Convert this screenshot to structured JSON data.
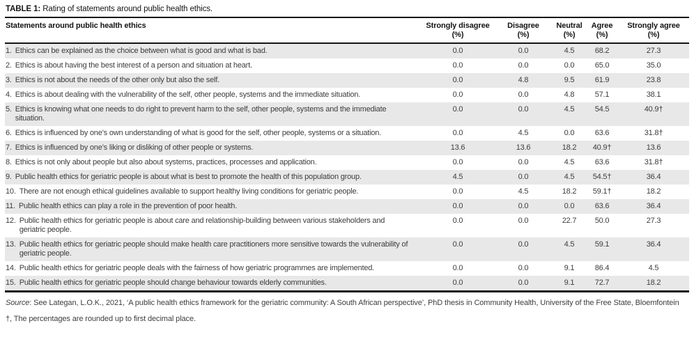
{
  "title": {
    "label": "TABLE 1:",
    "text": " Rating of statements around public health ethics."
  },
  "table": {
    "columns": [
      {
        "label": "Statements around public health ethics",
        "unit": ""
      },
      {
        "label": "Strongly disagree",
        "unit": "(%)"
      },
      {
        "label": "Disagree",
        "unit": "(%)"
      },
      {
        "label": "Neutral",
        "unit": "(%)"
      },
      {
        "label": "Agree",
        "unit": "(%)"
      },
      {
        "label": "Strongly agree",
        "unit": "(%)"
      }
    ],
    "rows": [
      {
        "num": "1.",
        "text": "Ethics can be explained as the choice between what is good and what is bad.",
        "values": [
          "0.0",
          "0.0",
          "4.5",
          "68.2",
          "27.3"
        ]
      },
      {
        "num": "2.",
        "text": "Ethics is about having the best interest of a person and situation at heart.",
        "values": [
          "0.0",
          "0.0",
          "0.0",
          "65.0",
          "35.0"
        ]
      },
      {
        "num": "3.",
        "text": "Ethics is not about the needs of the other only but also the self.",
        "values": [
          "0.0",
          "4.8",
          "9.5",
          "61.9",
          "23.8"
        ]
      },
      {
        "num": "4.",
        "text": "Ethics is about dealing with the vulnerability of the self, other people, systems and the immediate situation.",
        "values": [
          "0.0",
          "0.0",
          "4.8",
          "57.1",
          "38.1"
        ]
      },
      {
        "num": "5.",
        "text": "Ethics is knowing what one needs to do right to prevent harm to the self, other people, systems and the immediate situation.",
        "values": [
          "0.0",
          "0.0",
          "4.5",
          "54.5",
          "40.9†"
        ]
      },
      {
        "num": "6.",
        "text": "Ethics is influenced by one’s own understanding of what is good for the self, other people, systems or a situation.",
        "values": [
          "0.0",
          "4.5",
          "0.0",
          "63.6",
          "31.8†"
        ]
      },
      {
        "num": "7.",
        "text": "Ethics is influenced by one’s liking or disliking of other people or systems.",
        "values": [
          "13.6",
          "13.6",
          "18.2",
          "40.9†",
          "13.6"
        ]
      },
      {
        "num": "8.",
        "text": "Ethics is not only about people but also about systems, practices, processes and application.",
        "values": [
          "0.0",
          "0.0",
          "4.5",
          "63.6",
          "31.8†"
        ]
      },
      {
        "num": "9.",
        "text": "Public health ethics for geriatric people is about what is best to promote the health of this population group.",
        "values": [
          "4.5",
          "0.0",
          "4.5",
          "54.5†",
          "36.4"
        ]
      },
      {
        "num": "10.",
        "text": "There are not enough ethical guidelines available to support healthy living conditions for geriatric people.",
        "values": [
          "0.0",
          "4.5",
          "18.2",
          "59.1†",
          "18.2"
        ]
      },
      {
        "num": "11.",
        "text": "Public health ethics can play a role in the prevention of poor health.",
        "values": [
          "0.0",
          "0.0",
          "0.0",
          "63.6",
          "36.4"
        ]
      },
      {
        "num": "12.",
        "text": "Public health ethics for geriatric people is about care and relationship-building between various stakeholders and geriatric people.",
        "values": [
          "0.0",
          "0.0",
          "22.7",
          "50.0",
          "27.3"
        ]
      },
      {
        "num": "13.",
        "text": "Public health ethics for geriatric people should make health care practitioners more sensitive towards the vulnerability of geriatric people.",
        "values": [
          "0.0",
          "0.0",
          "4.5",
          "59.1",
          "36.4"
        ]
      },
      {
        "num": "14.",
        "text": "Public health ethics for geriatric people deals with the fairness of how geriatric programmes are implemented.",
        "values": [
          "0.0",
          "0.0",
          "9.1",
          "86.4",
          "4.5"
        ]
      },
      {
        "num": "15.",
        "text": "Public health ethics for geriatric people should change behaviour towards elderly communities.",
        "values": [
          "0.0",
          "0.0",
          "9.1",
          "72.7",
          "18.2"
        ]
      }
    ]
  },
  "source": {
    "label": "Source",
    "text": ": See Lategan, L.O.K., 2021, ‘A public health ethics framework for the geriatric community: A South African perspective’, PhD thesis in Community Health, University of the Free State, Bloemfontein"
  },
  "footnote": "†, The percentages are rounded up to first decimal place."
}
